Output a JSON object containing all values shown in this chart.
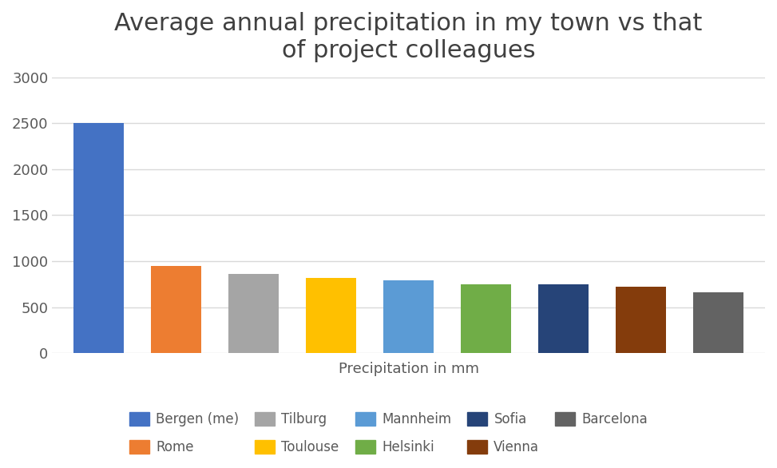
{
  "title": "Average annual precipitation in my town vs that\nof project colleagues",
  "xlabel": "Precipitation in mm",
  "categories": [
    "Bergen (me)",
    "Rome",
    "Tilburg",
    "Toulouse",
    "Mannheim",
    "Helsinki",
    "Sofia",
    "Vienna",
    "Barcelona"
  ],
  "values": [
    2500,
    950,
    860,
    820,
    790,
    750,
    750,
    720,
    660
  ],
  "colors": [
    "#4472C4",
    "#ED7D31",
    "#A5A5A5",
    "#FFC000",
    "#5B9BD5",
    "#70AD47",
    "#264478",
    "#843C0C",
    "#636363"
  ],
  "ylim": [
    0,
    3000
  ],
  "yticks": [
    0,
    500,
    1000,
    1500,
    2000,
    2500,
    3000
  ],
  "background_color": "#FFFFFF",
  "title_fontsize": 22,
  "xlabel_fontsize": 13,
  "tick_fontsize": 13,
  "legend_fontsize": 12,
  "grid_color": "#D9D9D9",
  "legend_row1": [
    "Bergen (me)",
    "Rome",
    "Tilburg",
    "Toulouse",
    "Mannheim"
  ],
  "legend_row2": [
    "Helsinki",
    "Sofia",
    "Vienna",
    "Barcelona"
  ]
}
